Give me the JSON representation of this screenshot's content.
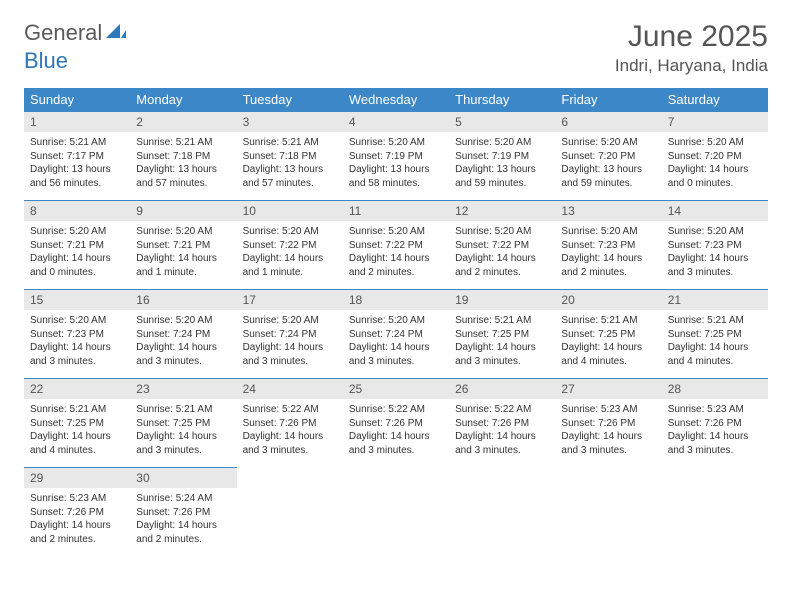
{
  "logo": {
    "gray": "General",
    "blue": "Blue"
  },
  "title": "June 2025",
  "location": "Indri, Haryana, India",
  "colors": {
    "header_bg": "#3b87c8",
    "header_fg": "#ffffff",
    "daynum_bg": "#e8e8e8",
    "rule": "#3b87c8"
  },
  "weekdays": [
    "Sunday",
    "Monday",
    "Tuesday",
    "Wednesday",
    "Thursday",
    "Friday",
    "Saturday"
  ],
  "weeks": [
    [
      {
        "n": "1",
        "sr": "Sunrise: 5:21 AM",
        "ss": "Sunset: 7:17 PM",
        "dl": "Daylight: 13 hours and 56 minutes."
      },
      {
        "n": "2",
        "sr": "Sunrise: 5:21 AM",
        "ss": "Sunset: 7:18 PM",
        "dl": "Daylight: 13 hours and 57 minutes."
      },
      {
        "n": "3",
        "sr": "Sunrise: 5:21 AM",
        "ss": "Sunset: 7:18 PM",
        "dl": "Daylight: 13 hours and 57 minutes."
      },
      {
        "n": "4",
        "sr": "Sunrise: 5:20 AM",
        "ss": "Sunset: 7:19 PM",
        "dl": "Daylight: 13 hours and 58 minutes."
      },
      {
        "n": "5",
        "sr": "Sunrise: 5:20 AM",
        "ss": "Sunset: 7:19 PM",
        "dl": "Daylight: 13 hours and 59 minutes."
      },
      {
        "n": "6",
        "sr": "Sunrise: 5:20 AM",
        "ss": "Sunset: 7:20 PM",
        "dl": "Daylight: 13 hours and 59 minutes."
      },
      {
        "n": "7",
        "sr": "Sunrise: 5:20 AM",
        "ss": "Sunset: 7:20 PM",
        "dl": "Daylight: 14 hours and 0 minutes."
      }
    ],
    [
      {
        "n": "8",
        "sr": "Sunrise: 5:20 AM",
        "ss": "Sunset: 7:21 PM",
        "dl": "Daylight: 14 hours and 0 minutes."
      },
      {
        "n": "9",
        "sr": "Sunrise: 5:20 AM",
        "ss": "Sunset: 7:21 PM",
        "dl": "Daylight: 14 hours and 1 minute."
      },
      {
        "n": "10",
        "sr": "Sunrise: 5:20 AM",
        "ss": "Sunset: 7:22 PM",
        "dl": "Daylight: 14 hours and 1 minute."
      },
      {
        "n": "11",
        "sr": "Sunrise: 5:20 AM",
        "ss": "Sunset: 7:22 PM",
        "dl": "Daylight: 14 hours and 2 minutes."
      },
      {
        "n": "12",
        "sr": "Sunrise: 5:20 AM",
        "ss": "Sunset: 7:22 PM",
        "dl": "Daylight: 14 hours and 2 minutes."
      },
      {
        "n": "13",
        "sr": "Sunrise: 5:20 AM",
        "ss": "Sunset: 7:23 PM",
        "dl": "Daylight: 14 hours and 2 minutes."
      },
      {
        "n": "14",
        "sr": "Sunrise: 5:20 AM",
        "ss": "Sunset: 7:23 PM",
        "dl": "Daylight: 14 hours and 3 minutes."
      }
    ],
    [
      {
        "n": "15",
        "sr": "Sunrise: 5:20 AM",
        "ss": "Sunset: 7:23 PM",
        "dl": "Daylight: 14 hours and 3 minutes."
      },
      {
        "n": "16",
        "sr": "Sunrise: 5:20 AM",
        "ss": "Sunset: 7:24 PM",
        "dl": "Daylight: 14 hours and 3 minutes."
      },
      {
        "n": "17",
        "sr": "Sunrise: 5:20 AM",
        "ss": "Sunset: 7:24 PM",
        "dl": "Daylight: 14 hours and 3 minutes."
      },
      {
        "n": "18",
        "sr": "Sunrise: 5:20 AM",
        "ss": "Sunset: 7:24 PM",
        "dl": "Daylight: 14 hours and 3 minutes."
      },
      {
        "n": "19",
        "sr": "Sunrise: 5:21 AM",
        "ss": "Sunset: 7:25 PM",
        "dl": "Daylight: 14 hours and 3 minutes."
      },
      {
        "n": "20",
        "sr": "Sunrise: 5:21 AM",
        "ss": "Sunset: 7:25 PM",
        "dl": "Daylight: 14 hours and 4 minutes."
      },
      {
        "n": "21",
        "sr": "Sunrise: 5:21 AM",
        "ss": "Sunset: 7:25 PM",
        "dl": "Daylight: 14 hours and 4 minutes."
      }
    ],
    [
      {
        "n": "22",
        "sr": "Sunrise: 5:21 AM",
        "ss": "Sunset: 7:25 PM",
        "dl": "Daylight: 14 hours and 4 minutes."
      },
      {
        "n": "23",
        "sr": "Sunrise: 5:21 AM",
        "ss": "Sunset: 7:25 PM",
        "dl": "Daylight: 14 hours and 3 minutes."
      },
      {
        "n": "24",
        "sr": "Sunrise: 5:22 AM",
        "ss": "Sunset: 7:26 PM",
        "dl": "Daylight: 14 hours and 3 minutes."
      },
      {
        "n": "25",
        "sr": "Sunrise: 5:22 AM",
        "ss": "Sunset: 7:26 PM",
        "dl": "Daylight: 14 hours and 3 minutes."
      },
      {
        "n": "26",
        "sr": "Sunrise: 5:22 AM",
        "ss": "Sunset: 7:26 PM",
        "dl": "Daylight: 14 hours and 3 minutes."
      },
      {
        "n": "27",
        "sr": "Sunrise: 5:23 AM",
        "ss": "Sunset: 7:26 PM",
        "dl": "Daylight: 14 hours and 3 minutes."
      },
      {
        "n": "28",
        "sr": "Sunrise: 5:23 AM",
        "ss": "Sunset: 7:26 PM",
        "dl": "Daylight: 14 hours and 3 minutes."
      }
    ],
    [
      {
        "n": "29",
        "sr": "Sunrise: 5:23 AM",
        "ss": "Sunset: 7:26 PM",
        "dl": "Daylight: 14 hours and 2 minutes."
      },
      {
        "n": "30",
        "sr": "Sunrise: 5:24 AM",
        "ss": "Sunset: 7:26 PM",
        "dl": "Daylight: 14 hours and 2 minutes."
      },
      {
        "empty": true
      },
      {
        "empty": true
      },
      {
        "empty": true
      },
      {
        "empty": true
      },
      {
        "empty": true
      }
    ]
  ]
}
